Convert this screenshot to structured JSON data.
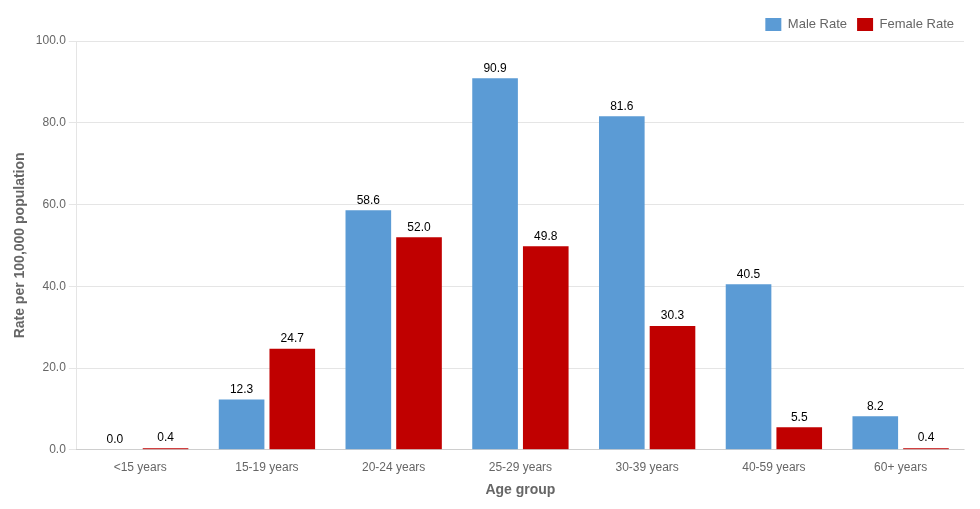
{
  "chart_data": {
    "type": "bar",
    "categories": [
      "<15 years",
      "15-19 years",
      "20-24 years",
      "25-29 years",
      "30-39 years",
      "40-59 years",
      "60+ years"
    ],
    "series": [
      {
        "name": "Male Rate",
        "color": "#5B9BD5",
        "values": [
          0.0,
          12.3,
          58.6,
          90.9,
          81.6,
          40.5,
          8.2
        ],
        "value_labels": [
          "0.0",
          "12.3",
          "58.6",
          "90.9",
          "81.6",
          "40.5",
          "8.2"
        ]
      },
      {
        "name": "Female Rate",
        "color": "#C00000",
        "values": [
          0.4,
          24.7,
          52.0,
          49.8,
          30.3,
          5.5,
          0.4
        ],
        "value_labels": [
          "0.4",
          "24.7",
          "52.0",
          "49.8",
          "30.3",
          "5.5",
          "0.4"
        ]
      }
    ],
    "x_label": "Age group",
    "y_label": "Rate per 100,000 population",
    "ylim": [
      0,
      100
    ],
    "yticks": [
      {
        "value": 0,
        "label": "0.0"
      },
      {
        "value": 20,
        "label": "20.0"
      },
      {
        "value": 40,
        "label": "40.0"
      },
      {
        "value": 60,
        "label": "60.0"
      },
      {
        "value": 80,
        "label": "80.0"
      },
      {
        "value": 100,
        "label": "100.0"
      }
    ],
    "grid": true,
    "legend": "upper right",
    "data_labels": true
  }
}
